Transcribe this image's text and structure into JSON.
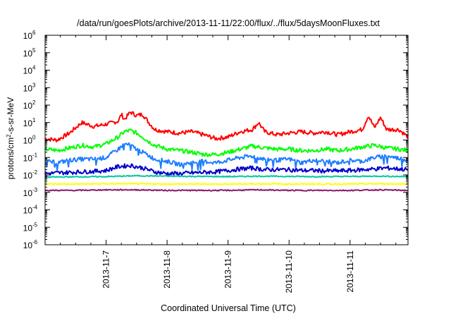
{
  "chart_data": {
    "type": "line",
    "title": "/data/run/goesPlots/archive/2013-11-11/22:00/flux/../flux/5daysMoonFluxes.txt",
    "xlabel": "Coordinated Universal Time (UTC)",
    "ylabel_base": "protons/cm",
    "ylabel_sup": "2",
    "ylabel_rest": "-s-sr-MeV",
    "y_scale": "log",
    "ylim_exp": [
      -6,
      6
    ],
    "y_tick_base": "10",
    "y_ticks": [
      {
        "exp": -6,
        "label": "-6"
      },
      {
        "exp": -5,
        "label": "-5"
      },
      {
        "exp": -4,
        "label": "-4"
      },
      {
        "exp": -3,
        "label": "-3"
      },
      {
        "exp": -2,
        "label": "-2"
      },
      {
        "exp": -1,
        "label": "-1"
      },
      {
        "exp": 0,
        "label": "0"
      },
      {
        "exp": 1,
        "label": "1"
      },
      {
        "exp": 2,
        "label": "2"
      },
      {
        "exp": 3,
        "label": "3"
      },
      {
        "exp": 4,
        "label": "4"
      },
      {
        "exp": 5,
        "label": "5"
      },
      {
        "exp": 6,
        "label": "6"
      }
    ],
    "xlim_days": [
      6.0,
      11.95
    ],
    "x_ticks": [
      {
        "day": 7,
        "label": "2013-11-7"
      },
      {
        "day": 8,
        "label": "2013-11-8"
      },
      {
        "day": 9,
        "label": "2013-11-9"
      },
      {
        "day": 10,
        "label": "2013-11-10"
      },
      {
        "day": 11,
        "label": "2013-11-11"
      }
    ],
    "grid": false,
    "series": [
      {
        "color": "#ff0000",
        "x": [
          6.0,
          6.2,
          6.4,
          6.6,
          6.8,
          7.0,
          7.2,
          7.25,
          7.3,
          7.4,
          7.5,
          7.6,
          7.7,
          7.8,
          8.0,
          8.2,
          8.4,
          8.6,
          8.8,
          9.0,
          9.2,
          9.4,
          9.5,
          9.6,
          9.8,
          10.0,
          10.2,
          10.4,
          10.6,
          10.8,
          11.0,
          11.2,
          11.3,
          11.4,
          11.5,
          11.6,
          11.8,
          11.95
        ],
        "y": [
          1.2,
          1.0,
          2.5,
          10,
          6,
          8,
          12,
          30,
          15,
          40,
          25,
          30,
          10,
          4,
          3,
          2.5,
          3,
          2,
          1.2,
          1.5,
          3,
          4,
          10,
          3,
          2,
          2.5,
          3,
          2.5,
          3,
          2,
          3,
          4,
          25,
          5,
          20,
          4,
          4,
          1.5
        ]
      },
      {
        "color": "#00ff00",
        "x": [
          6.0,
          6.2,
          6.4,
          6.6,
          6.8,
          7.0,
          7.2,
          7.3,
          7.4,
          7.5,
          7.6,
          7.7,
          7.8,
          8.0,
          8.2,
          8.4,
          8.6,
          8.8,
          9.0,
          9.2,
          9.4,
          9.6,
          9.8,
          10.0,
          10.2,
          10.4,
          10.6,
          10.8,
          11.0,
          11.2,
          11.4,
          11.6,
          11.8,
          11.95
        ],
        "y": [
          0.3,
          0.25,
          0.35,
          0.5,
          0.4,
          0.6,
          1.5,
          3,
          3.5,
          2.5,
          1.5,
          0.8,
          0.5,
          0.3,
          0.25,
          0.2,
          0.15,
          0.15,
          0.2,
          0.3,
          0.45,
          0.35,
          0.3,
          0.3,
          0.25,
          0.25,
          0.3,
          0.25,
          0.3,
          0.4,
          0.5,
          0.35,
          0.3,
          0.25
        ]
      },
      {
        "color": "#1f7fff",
        "x": [
          6.0,
          6.2,
          6.4,
          6.6,
          6.8,
          7.0,
          7.2,
          7.3,
          7.4,
          7.5,
          7.6,
          7.8,
          8.0,
          8.2,
          8.4,
          8.6,
          8.8,
          9.0,
          9.2,
          9.4,
          9.6,
          9.8,
          10.0,
          10.2,
          10.4,
          10.6,
          10.8,
          11.0,
          11.2,
          11.4,
          11.6,
          11.8,
          11.95
        ],
        "y": [
          0.06,
          0.05,
          0.07,
          0.08,
          0.08,
          0.1,
          0.3,
          0.6,
          0.5,
          0.3,
          0.2,
          0.08,
          0.06,
          0.04,
          0.05,
          0.06,
          0.05,
          0.07,
          0.1,
          0.12,
          0.08,
          0.07,
          0.08,
          0.05,
          0.07,
          0.06,
          0.05,
          0.07,
          0.06,
          0.1,
          0.12,
          0.09,
          0.07
        ]
      },
      {
        "color": "#0000cc",
        "x": [
          6.0,
          6.2,
          6.4,
          6.6,
          6.8,
          7.0,
          7.2,
          7.4,
          7.6,
          7.8,
          8.0,
          8.2,
          8.4,
          8.6,
          8.8,
          9.0,
          9.2,
          9.4,
          9.6,
          9.8,
          10.0,
          10.2,
          10.4,
          10.6,
          10.8,
          11.0,
          11.2,
          11.4,
          11.6,
          11.8,
          11.95
        ],
        "y": [
          0.012,
          0.013,
          0.014,
          0.015,
          0.016,
          0.018,
          0.03,
          0.035,
          0.025,
          0.015,
          0.012,
          0.012,
          0.013,
          0.014,
          0.015,
          0.018,
          0.022,
          0.025,
          0.02,
          0.02,
          0.02,
          0.018,
          0.018,
          0.017,
          0.017,
          0.018,
          0.02,
          0.022,
          0.025,
          0.022,
          0.02
        ]
      },
      {
        "color": "#00c8a0",
        "x": [
          6.0,
          6.5,
          7.0,
          7.5,
          8.0,
          8.5,
          9.0,
          9.5,
          10.0,
          10.5,
          11.0,
          11.5,
          11.95
        ],
        "y": [
          0.0075,
          0.0078,
          0.008,
          0.009,
          0.0085,
          0.0082,
          0.008,
          0.0085,
          0.0082,
          0.008,
          0.0082,
          0.0085,
          0.008
        ]
      },
      {
        "color": "#ffff00",
        "x": [
          6.0,
          6.5,
          7.0,
          7.5,
          8.0,
          8.5,
          9.0,
          9.5,
          10.0,
          10.5,
          11.0,
          11.5,
          11.95
        ],
        "y": [
          0.003,
          0.003,
          0.0031,
          0.0031,
          0.003,
          0.003,
          0.003,
          0.0031,
          0.003,
          0.003,
          0.003,
          0.0031,
          0.003
        ]
      },
      {
        "color": "#8b1a6b",
        "x": [
          6.0,
          6.5,
          7.0,
          7.5,
          8.0,
          8.5,
          9.0,
          9.5,
          10.0,
          10.5,
          11.0,
          11.5,
          11.95
        ],
        "y": [
          0.0013,
          0.0013,
          0.0014,
          0.0014,
          0.0013,
          0.0013,
          0.0013,
          0.0014,
          0.0013,
          0.0013,
          0.0013,
          0.0014,
          0.0013
        ]
      }
    ]
  }
}
